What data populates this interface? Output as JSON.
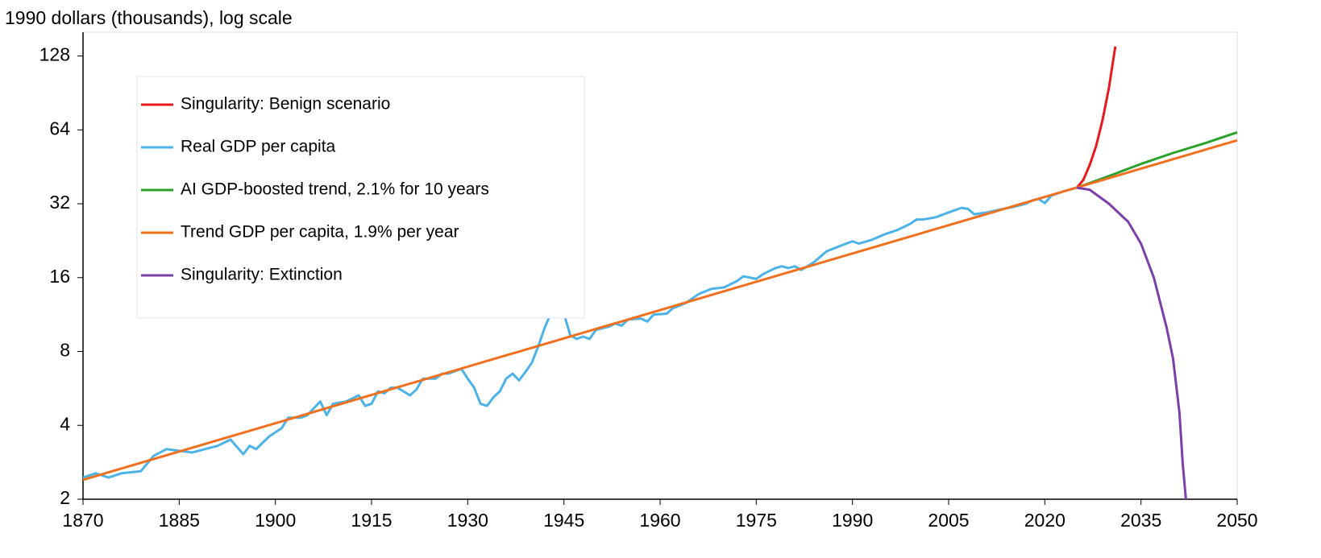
{
  "chart_data": {
    "type": "line",
    "ylabel": "1990 dollars (thousands),  log scale",
    "yscale": "log",
    "log_base": 2,
    "xlim": [
      1870,
      2050
    ],
    "xticks": [
      1870,
      1885,
      1900,
      1915,
      1930,
      1945,
      1960,
      1975,
      1990,
      2005,
      2020,
      2035,
      2050
    ],
    "ylim": [
      2,
      160
    ],
    "yticks": [
      2,
      4,
      8,
      16,
      32,
      64,
      128
    ],
    "legend": "top-left",
    "series": [
      {
        "name": "Singularity: Benign scenario",
        "color": "#e41a1c",
        "x": [
          2025,
          2026,
          2027,
          2028,
          2029,
          2030,
          2031
        ],
        "values": [
          37.2,
          40,
          46,
          55,
          70,
          95,
          140
        ]
      },
      {
        "name": "Real GDP per capita",
        "color": "#4db3e6",
        "x": [
          1870,
          1872,
          1874,
          1876,
          1879,
          1881,
          1883,
          1885,
          1887,
          1889,
          1891,
          1893,
          1895,
          1896,
          1897,
          1899,
          1901,
          1902,
          1904,
          1905,
          1906,
          1907,
          1908,
          1909,
          1911,
          1913,
          1914,
          1915,
          1916,
          1917,
          1918,
          1919,
          1921,
          1922,
          1923,
          1925,
          1926,
          1927,
          1929,
          1930,
          1931,
          1932,
          1933,
          1934,
          1935,
          1936,
          1937,
          1938,
          1939,
          1940,
          1941,
          1942,
          1943,
          1944,
          1945,
          1946,
          1947,
          1948,
          1949,
          1950,
          1952,
          1953,
          1954,
          1955,
          1957,
          1958,
          1959,
          1961,
          1962,
          1964,
          1966,
          1968,
          1970,
          1972,
          1973,
          1975,
          1976,
          1978,
          1979,
          1980,
          1981,
          1982,
          1984,
          1986,
          1988,
          1990,
          1991,
          1993,
          1995,
          1997,
          1999,
          2000,
          2001,
          2003,
          2005,
          2007,
          2008,
          2009,
          2011,
          2013,
          2015,
          2017,
          2018,
          2019,
          2020,
          2021,
          2023,
          2025
        ],
        "values": [
          2.45,
          2.55,
          2.45,
          2.55,
          2.6,
          3.0,
          3.2,
          3.15,
          3.1,
          3.2,
          3.3,
          3.5,
          3.05,
          3.3,
          3.2,
          3.6,
          3.9,
          4.3,
          4.3,
          4.4,
          4.7,
          5.0,
          4.4,
          4.9,
          5.0,
          5.3,
          4.8,
          4.9,
          5.5,
          5.4,
          5.7,
          5.7,
          5.3,
          5.6,
          6.2,
          6.2,
          6.5,
          6.5,
          6.8,
          6.2,
          5.7,
          4.9,
          4.8,
          5.2,
          5.5,
          6.2,
          6.5,
          6.1,
          6.6,
          7.2,
          8.4,
          10.0,
          11.5,
          12.0,
          11.4,
          9.3,
          9.0,
          9.2,
          9.0,
          9.8,
          10.1,
          10.4,
          10.2,
          10.8,
          10.9,
          10.6,
          11.3,
          11.4,
          12.0,
          12.6,
          13.7,
          14.4,
          14.6,
          15.5,
          16.2,
          15.8,
          16.5,
          17.5,
          17.8,
          17.5,
          17.8,
          17.2,
          18.5,
          20.5,
          21.5,
          22.5,
          22.0,
          22.8,
          24.0,
          25.0,
          26.5,
          27.6,
          27.6,
          28.2,
          29.5,
          30.8,
          30.5,
          29.0,
          29.5,
          30.3,
          31.0,
          32.0,
          33.0,
          33.5,
          32.2,
          34.5,
          36.0,
          37.2
        ]
      },
      {
        "name": "AI GDP-boosted trend, 2.1% for 10 years",
        "color": "#2ca02c",
        "x": [
          2025,
          2030,
          2035,
          2040,
          2045,
          2050
        ],
        "values": [
          37.2,
          41.5,
          46.5,
          51.5,
          56.5,
          62.5
        ]
      },
      {
        "name": "Trend GDP per capita, 1.9% per year",
        "color": "#f07020",
        "x": [
          1870,
          2050
        ],
        "values": [
          2.4,
          58
        ]
      },
      {
        "name": "Singularity: Extinction",
        "color": "#7b3fa8",
        "x": [
          2025,
          2027,
          2030,
          2033,
          2035,
          2037,
          2039,
          2040,
          2041,
          2041.5,
          2042
        ],
        "values": [
          37.2,
          36.5,
          32,
          27,
          22,
          16,
          10,
          7.5,
          4.5,
          2.8,
          2
        ]
      }
    ]
  }
}
